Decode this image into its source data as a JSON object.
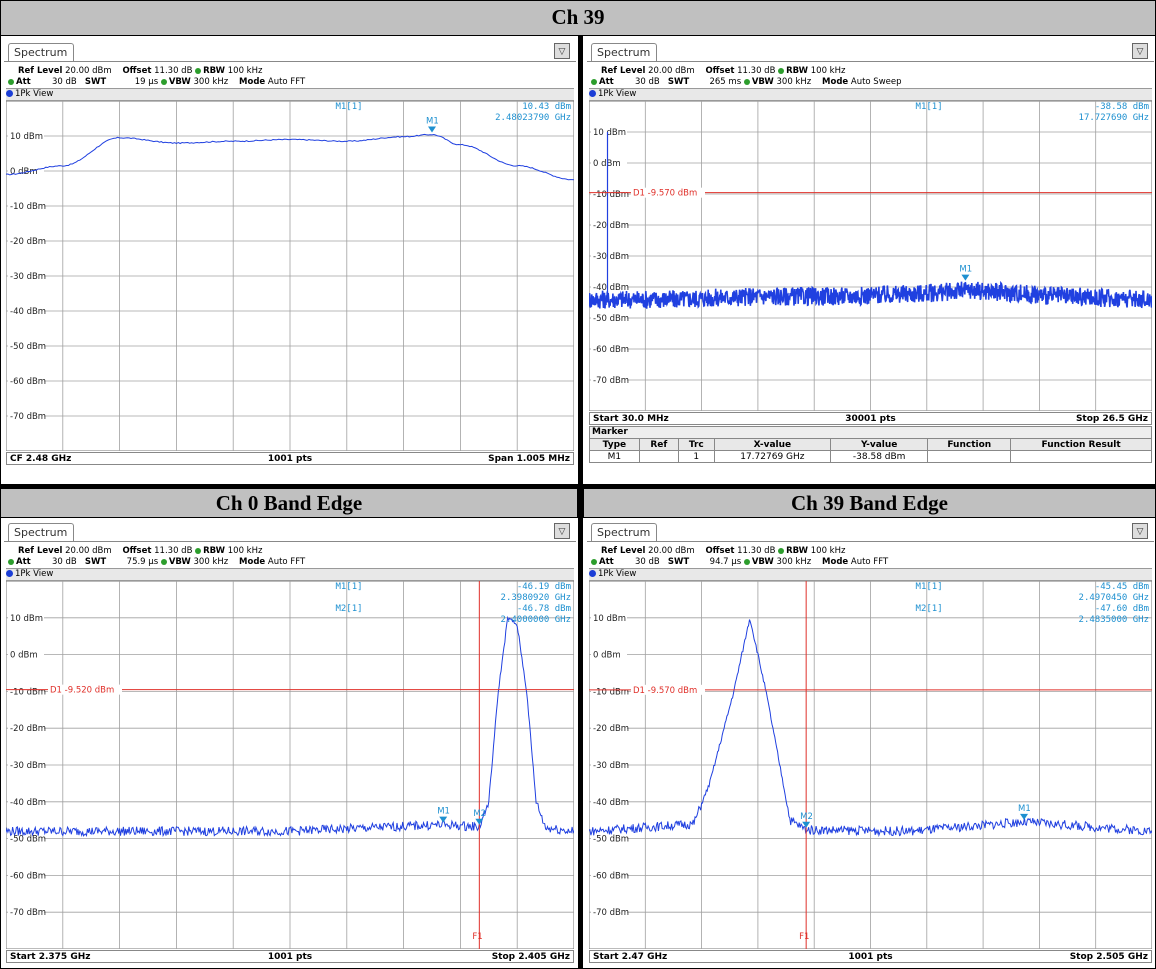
{
  "titles": {
    "top": "Ch 39",
    "bottom_left": "Ch 0 Band Edge",
    "bottom_right": "Ch 39 Band Edge"
  },
  "colors": {
    "trace": "#2040e0",
    "marker": "#1e90d0",
    "limit": "#e0302a",
    "grid": "#a0a0a0"
  },
  "panels": [
    {
      "tab": "Spectrum",
      "ref_label": "Ref Level",
      "ref_value": "20.00 dBm",
      "offset_label": "Offset",
      "offset_value": "11.30 dB",
      "rbw_label": "RBW",
      "rbw_value": "100 kHz",
      "att_label": "Att",
      "att_value": "30 dB",
      "swt_label": "SWT",
      "swt_value": "19 µs",
      "vbw_label": "VBW",
      "vbw_value": "300 kHz",
      "mode_label": "Mode",
      "mode_value": "Auto FFT",
      "view": "1Pk View",
      "ylabels": [
        "10 dBm",
        "0 dBm",
        "-10 dBm",
        "-20 dBm",
        "-30 dBm",
        "-40 dBm",
        "-50 dBm",
        "-60 dBm",
        "-70 dBm"
      ],
      "marker_readouts": [
        {
          "name": "M1[1]",
          "level": "10.43 dBm",
          "freq": "2.48023790 GHz"
        }
      ],
      "line_label": "",
      "foot_left": "CF 2.48 GHz",
      "foot_mid": "1001 pts",
      "foot_right": "Span 1.005 MHz"
    },
    {
      "tab": "Spectrum",
      "ref_label": "Ref Level",
      "ref_value": "20.00 dBm",
      "offset_label": "Offset",
      "offset_value": "11.30 dB",
      "rbw_label": "RBW",
      "rbw_value": "100 kHz",
      "att_label": "Att",
      "att_value": "30 dB",
      "swt_label": "SWT",
      "swt_value": "265 ms",
      "vbw_label": "VBW",
      "vbw_value": "300 kHz",
      "mode_label": "Mode",
      "mode_value": "Auto Sweep",
      "view": "1Pk View",
      "ylabels": [
        "10 dBm",
        "0 dBm",
        "-10 dBm",
        "-20 dBm",
        "-30 dBm",
        "-40 dBm",
        "-50 dBm",
        "-60 dBm",
        "-70 dBm"
      ],
      "marker_readouts": [
        {
          "name": "M1[1]",
          "level": "-38.58 dBm",
          "freq": "17.727690 GHz"
        }
      ],
      "line_label": "D1  -9.570 dBm",
      "foot_left": "Start 30.0 MHz",
      "foot_mid": "30001 pts",
      "foot_right": "Stop 26.5 GHz",
      "marker_table": {
        "title": "Marker",
        "headers": [
          "Type",
          "Ref",
          "Trc",
          "X-value",
          "Y-value",
          "Function",
          "Function Result"
        ],
        "rows": [
          [
            "M1",
            "",
            "1",
            "17.72769 GHz",
            "-38.58 dBm",
            "",
            ""
          ]
        ]
      }
    },
    {
      "tab": "Spectrum",
      "ref_label": "Ref Level",
      "ref_value": "20.00 dBm",
      "offset_label": "Offset",
      "offset_value": "11.30 dB",
      "rbw_label": "RBW",
      "rbw_value": "100 kHz",
      "att_label": "Att",
      "att_value": "30 dB",
      "swt_label": "SWT",
      "swt_value": "75.9 µs",
      "vbw_label": "VBW",
      "vbw_value": "300 kHz",
      "mode_label": "Mode",
      "mode_value": "Auto FFT",
      "view": "1Pk View",
      "ylabels": [
        "10 dBm",
        "0 dBm",
        "-10 dBm",
        "-20 dBm",
        "-30 dBm",
        "-40 dBm",
        "-50 dBm",
        "-60 dBm",
        "-70 dBm"
      ],
      "marker_readouts": [
        {
          "name": "M1[1]",
          "level": "-46.19 dBm",
          "freq": "2.3980920 GHz"
        },
        {
          "name": "M2[1]",
          "level": "-46.78 dBm",
          "freq": "2.4000000 GHz"
        }
      ],
      "line_label": "D1  -9.520 dBm",
      "f_label": "F1",
      "foot_left": "Start 2.375 GHz",
      "foot_mid": "1001 pts",
      "foot_right": "Stop 2.405 GHz"
    },
    {
      "tab": "Spectrum",
      "ref_label": "Ref Level",
      "ref_value": "20.00 dBm",
      "offset_label": "Offset",
      "offset_value": "11.30 dB",
      "rbw_label": "RBW",
      "rbw_value": "100 kHz",
      "att_label": "Att",
      "att_value": "30 dB",
      "swt_label": "SWT",
      "swt_value": "94.7 µs",
      "vbw_label": "VBW",
      "vbw_value": "300 kHz",
      "mode_label": "Mode",
      "mode_value": "Auto FFT",
      "view": "1Pk View",
      "ylabels": [
        "10 dBm",
        "0 dBm",
        "-10 dBm",
        "-20 dBm",
        "-30 dBm",
        "-40 dBm",
        "-50 dBm",
        "-60 dBm",
        "-70 dBm"
      ],
      "marker_readouts": [
        {
          "name": "M1[1]",
          "level": "-45.45 dBm",
          "freq": "2.4970450 GHz"
        },
        {
          "name": "M2[1]",
          "level": "-47.60 dBm",
          "freq": "2.4835000 GHz"
        }
      ],
      "line_label": "D1  -9.570 dBm",
      "f_label": "F1",
      "foot_left": "Start 2.47 GHz",
      "foot_mid": "1001 pts",
      "foot_right": "Stop 2.505 GHz"
    }
  ],
  "chart_data": [
    {
      "type": "line",
      "title": "Ch 39",
      "x_center_ghz": 2.48,
      "span_mhz": 1.005,
      "ylim": [
        -80,
        20
      ],
      "grid": true,
      "x_frac": [
        0,
        0.1,
        0.2,
        0.3,
        0.4,
        0.5,
        0.6,
        0.7,
        0.75,
        0.8,
        0.9,
        1.0
      ],
      "values_dbm": [
        -1.0,
        1.5,
        9.5,
        8.0,
        8.5,
        9.0,
        8.5,
        9.8,
        10.4,
        7.5,
        1.5,
        -2.5
      ],
      "markers": [
        {
          "name": "M1",
          "x_ghz": 2.4802379,
          "y_dbm": 10.43
        }
      ]
    },
    {
      "type": "line",
      "title": "Ch 39",
      "x_start_ghz": 0.03,
      "x_stop_ghz": 26.5,
      "ylim": [
        -80,
        20
      ],
      "grid": true,
      "limit_line_dbm": -9.57,
      "x_ghz": [
        0.03,
        0.9,
        2.48,
        4.0,
        8.0,
        12.0,
        16.0,
        18.0,
        22.0,
        26.5
      ],
      "values_dbm": [
        -45,
        10,
        -44,
        -44,
        -43,
        -43,
        -42,
        -41,
        -43,
        -44
      ],
      "markers": [
        {
          "name": "M1",
          "x_ghz": 17.72769,
          "y_dbm": -38.58
        }
      ]
    },
    {
      "type": "line",
      "title": "Ch 0 Band Edge",
      "x_start_ghz": 2.375,
      "x_stop_ghz": 2.405,
      "ylim": [
        -80,
        20
      ],
      "grid": true,
      "limit_line_dbm": -9.52,
      "f1_ghz": 2.4,
      "x_ghz": [
        2.375,
        2.39,
        2.398,
        2.4,
        2.4005,
        2.401,
        2.4015,
        2.402,
        2.4025,
        2.403,
        2.4035,
        2.405
      ],
      "values_dbm": [
        -48,
        -48,
        -46.2,
        -46.8,
        -40,
        -10,
        10,
        8,
        -10,
        -40,
        -47,
        -48
      ],
      "markers": [
        {
          "name": "M1",
          "x_ghz": 2.398092,
          "y_dbm": -46.19
        },
        {
          "name": "M2",
          "x_ghz": 2.4,
          "y_dbm": -46.78
        }
      ]
    },
    {
      "type": "line",
      "title": "Ch 39 Band Edge",
      "x_start_ghz": 2.47,
      "x_stop_ghz": 2.505,
      "ylim": [
        -80,
        20
      ],
      "grid": true,
      "limit_line_dbm": -9.57,
      "f1_ghz": 2.4835,
      "x_ghz": [
        2.47,
        2.4765,
        2.4775,
        2.479,
        2.48,
        2.481,
        2.4825,
        2.4835,
        2.49,
        2.497,
        2.505
      ],
      "values_dbm": [
        -48,
        -46,
        -35,
        -10,
        10,
        -10,
        -45,
        -47.6,
        -48,
        -45.45,
        -48
      ],
      "markers": [
        {
          "name": "M1",
          "x_ghz": 2.497045,
          "y_dbm": -45.45
        },
        {
          "name": "M2",
          "x_ghz": 2.4835,
          "y_dbm": -47.6
        }
      ]
    }
  ]
}
